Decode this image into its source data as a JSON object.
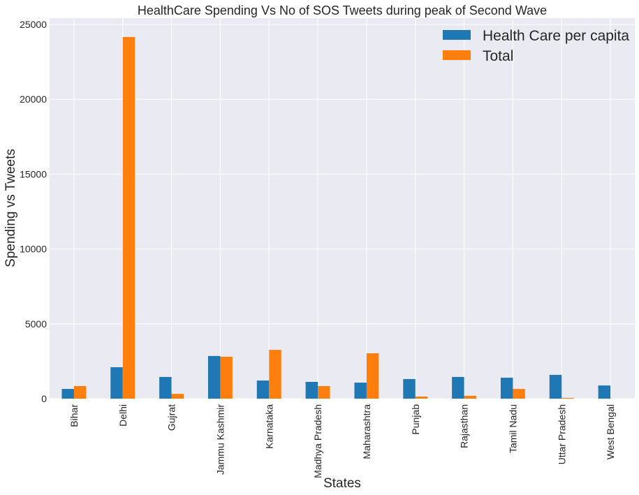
{
  "chart_data": {
    "type": "bar",
    "title": "HealthCare Spending Vs No of SOS Tweets during peak of Second Wave",
    "xlabel": "States",
    "ylabel": "Spending vs Tweets",
    "ylim": [
      0,
      25400
    ],
    "yticks": [
      0,
      5000,
      10000,
      15000,
      20000,
      25000
    ],
    "ytick_labels": [
      "0",
      "5000",
      "10000",
      "15000",
      "20000",
      "25000"
    ],
    "grid": true,
    "legend_position": "top-right",
    "categories": [
      "Bihar",
      "Delhi",
      "Gujrat",
      "Jammu Kashmir",
      "Karnataka",
      "Madhya Pradesh",
      "Maharashtra",
      "Punjab",
      "Rajasthan",
      "Tamil Nadu",
      "Uttar Pradesh",
      "West Bengal"
    ],
    "series": [
      {
        "name": "Health Care per capita",
        "color": "#1f77b4",
        "values": [
          650,
          2100,
          1450,
          2850,
          1210,
          1120,
          1070,
          1310,
          1450,
          1400,
          1590,
          880
        ]
      },
      {
        "name": "Total",
        "color": "#ff7f0e",
        "values": [
          840,
          24160,
          320,
          2800,
          3260,
          840,
          3030,
          140,
          190,
          650,
          50,
          0
        ]
      }
    ]
  }
}
